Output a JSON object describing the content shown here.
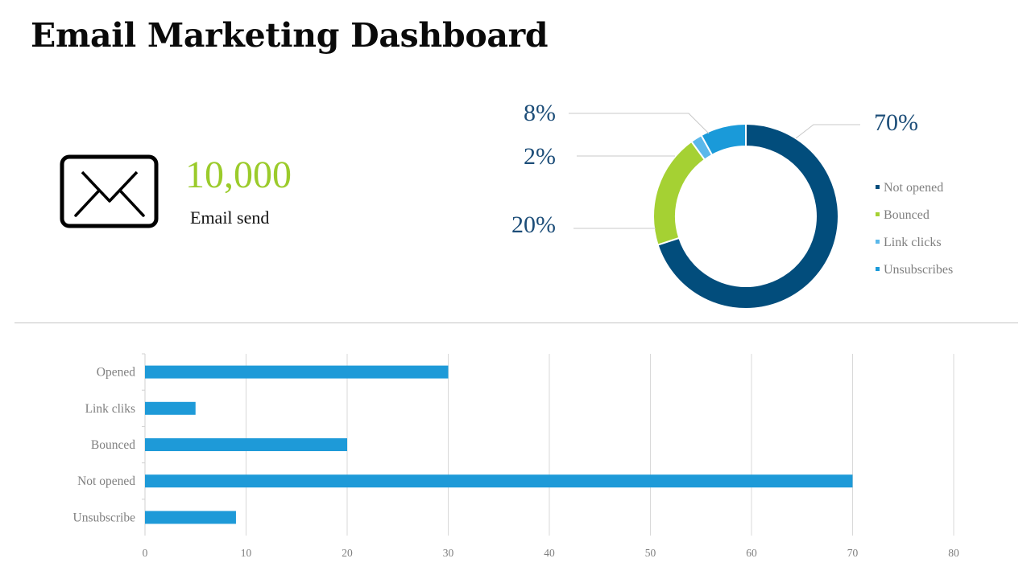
{
  "header": {
    "title": "Email Marketing Dashboard"
  },
  "summary": {
    "icon": "envelope-icon",
    "value": "10,000",
    "label": "Email send"
  },
  "colors": {
    "not_opened": "#024d7c",
    "bounced": "#a5d133",
    "link_clicks": "#5bb8ea",
    "unsubscribes": "#1a9ad9",
    "bar": "#1e9ad8",
    "big_number": "#9bcb2b",
    "percent_text": "#1c4d78"
  },
  "chart_data": [
    {
      "type": "pie",
      "donut": true,
      "slices": [
        {
          "label": "Not opened",
          "value": 70,
          "percent_label": "70%",
          "color": "#024d7c"
        },
        {
          "label": "Bounced",
          "value": 20,
          "percent_label": "20%",
          "color": "#a5d133"
        },
        {
          "label": "Link clicks",
          "value": 2,
          "percent_label": "2%",
          "color": "#5bb8ea"
        },
        {
          "label": "Unsubscribes",
          "value": 8,
          "percent_label": "8%",
          "color": "#1a9ad9"
        }
      ],
      "legend": [
        "Not opened",
        "Bounced",
        "Link clicks",
        "Unsubscribes"
      ],
      "legend_position": "right"
    },
    {
      "type": "bar",
      "orientation": "horizontal",
      "categories": [
        "Opened",
        "Link cliks",
        "Bounced",
        "Not opened",
        "Unsubscribe"
      ],
      "values": [
        30,
        5,
        20,
        70,
        9
      ],
      "xlim": [
        0,
        80
      ],
      "xticks": [
        "0",
        "10",
        "20",
        "30",
        "40",
        "50",
        "60",
        "70",
        "80"
      ],
      "grid": true,
      "color": "#1e9ad8"
    }
  ]
}
